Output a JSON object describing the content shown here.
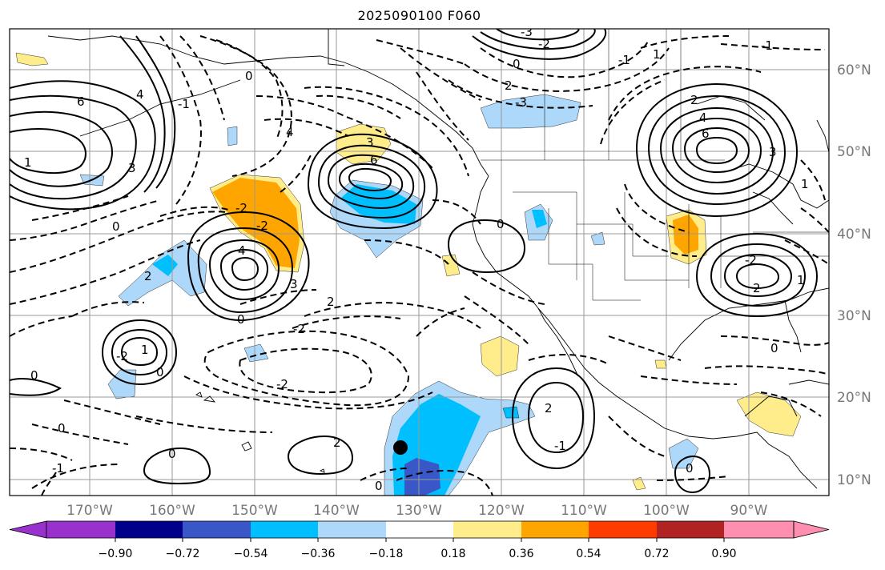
{
  "title": "2025090100 F060",
  "map": {
    "lon_labels": [
      "170°W",
      "160°W",
      "150°W",
      "140°W",
      "130°W",
      "120°W",
      "110°W",
      "100°W",
      "90°W"
    ],
    "lat_labels": [
      "60°N",
      "50°N",
      "40°N",
      "30°N",
      "20°N",
      "10°N"
    ],
    "contour_labels": [
      "6",
      "4",
      "3",
      "1",
      "-1",
      "0",
      "6",
      "-3",
      "3",
      "4",
      "0",
      "2",
      "-2",
      "-2",
      "2",
      "4",
      "3",
      "0",
      "-2",
      "2",
      "1",
      "-2",
      "-2",
      "0",
      "0",
      "0",
      "0",
      "2",
      "-1",
      "-2",
      "-3",
      "0",
      "1",
      "2",
      "4",
      "6",
      "3",
      "1",
      "-1",
      "2",
      "0",
      "-1",
      "2",
      "-2",
      "1",
      "0",
      "-1",
      "0",
      "0"
    ],
    "fill_colors": {
      "neg_strong": "#00bfff",
      "neg_weak": "#add8f9",
      "neg_deep": "#3a57c8",
      "pos_weak": "#ffec8b",
      "pos_strong": "#ffa500",
      "marker": "#000000"
    }
  },
  "colorbar": {
    "ticks": [
      "−0.90",
      "−0.72",
      "−0.54",
      "−0.36",
      "−0.18",
      "0.18",
      "0.36",
      "0.54",
      "0.72",
      "0.90"
    ],
    "colors": [
      "#9932cc",
      "#00008b",
      "#3a57c8",
      "#00bfff",
      "#add8f9",
      "#ffffff",
      "#ffec8b",
      "#ffa500",
      "#ff3b00",
      "#b22222",
      "#ff8fb0"
    ],
    "extend": "both"
  }
}
